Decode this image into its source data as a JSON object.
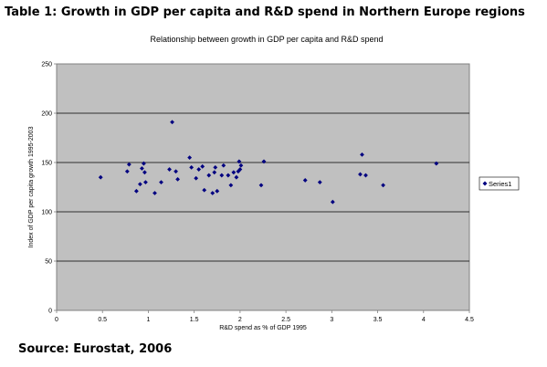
{
  "document": {
    "title": "Table 1: Growth in  GDP per capita and R&D spend in Northern Europe regions",
    "source": "Source: Eurostat, 2006"
  },
  "chart_data": {
    "type": "scatter",
    "title": "Relationship between growth in GDP per capita and R&D spend",
    "xlabel": "R&D spend as % of GDP 1995",
    "ylabel": "Index of GDP per capita growth 1995-2003",
    "xlim": [
      0,
      4.5
    ],
    "ylim": [
      0,
      250
    ],
    "x_ticks": [
      "0",
      "0.5",
      "1",
      "1.5",
      "2",
      "2.5",
      "3",
      "3.5",
      "4",
      "4.5"
    ],
    "y_ticks": [
      "0",
      "50",
      "100",
      "150",
      "200",
      "250"
    ],
    "grid": "horizontal",
    "plot_background": "#c0c0c0",
    "marker_color": "#000080",
    "legend_position": "right",
    "series": [
      {
        "name": "Series1",
        "points": [
          [
            0.48,
            135
          ],
          [
            0.77,
            141
          ],
          [
            0.79,
            148
          ],
          [
            0.87,
            121
          ],
          [
            0.91,
            128
          ],
          [
            0.93,
            144
          ],
          [
            0.95,
            149
          ],
          [
            0.96,
            140
          ],
          [
            0.97,
            130
          ],
          [
            1.07,
            119
          ],
          [
            1.14,
            130
          ],
          [
            1.23,
            143
          ],
          [
            1.26,
            191
          ],
          [
            1.3,
            141
          ],
          [
            1.32,
            133
          ],
          [
            1.45,
            155
          ],
          [
            1.47,
            145
          ],
          [
            1.52,
            134
          ],
          [
            1.55,
            143
          ],
          [
            1.59,
            146
          ],
          [
            1.61,
            122
          ],
          [
            1.66,
            137
          ],
          [
            1.7,
            119
          ],
          [
            1.72,
            140
          ],
          [
            1.73,
            145
          ],
          [
            1.75,
            121
          ],
          [
            1.8,
            137
          ],
          [
            1.82,
            147
          ],
          [
            1.87,
            137
          ],
          [
            1.9,
            127
          ],
          [
            1.93,
            140
          ],
          [
            1.96,
            135
          ],
          [
            1.98,
            141
          ],
          [
            1.99,
            151
          ],
          [
            2.0,
            143
          ],
          [
            2.01,
            147
          ],
          [
            2.23,
            127
          ],
          [
            2.26,
            151
          ],
          [
            2.71,
            132
          ],
          [
            2.87,
            130
          ],
          [
            3.01,
            110
          ],
          [
            3.31,
            138
          ],
          [
            3.33,
            158
          ],
          [
            3.37,
            137
          ],
          [
            3.56,
            127
          ],
          [
            4.14,
            149
          ]
        ]
      }
    ]
  }
}
